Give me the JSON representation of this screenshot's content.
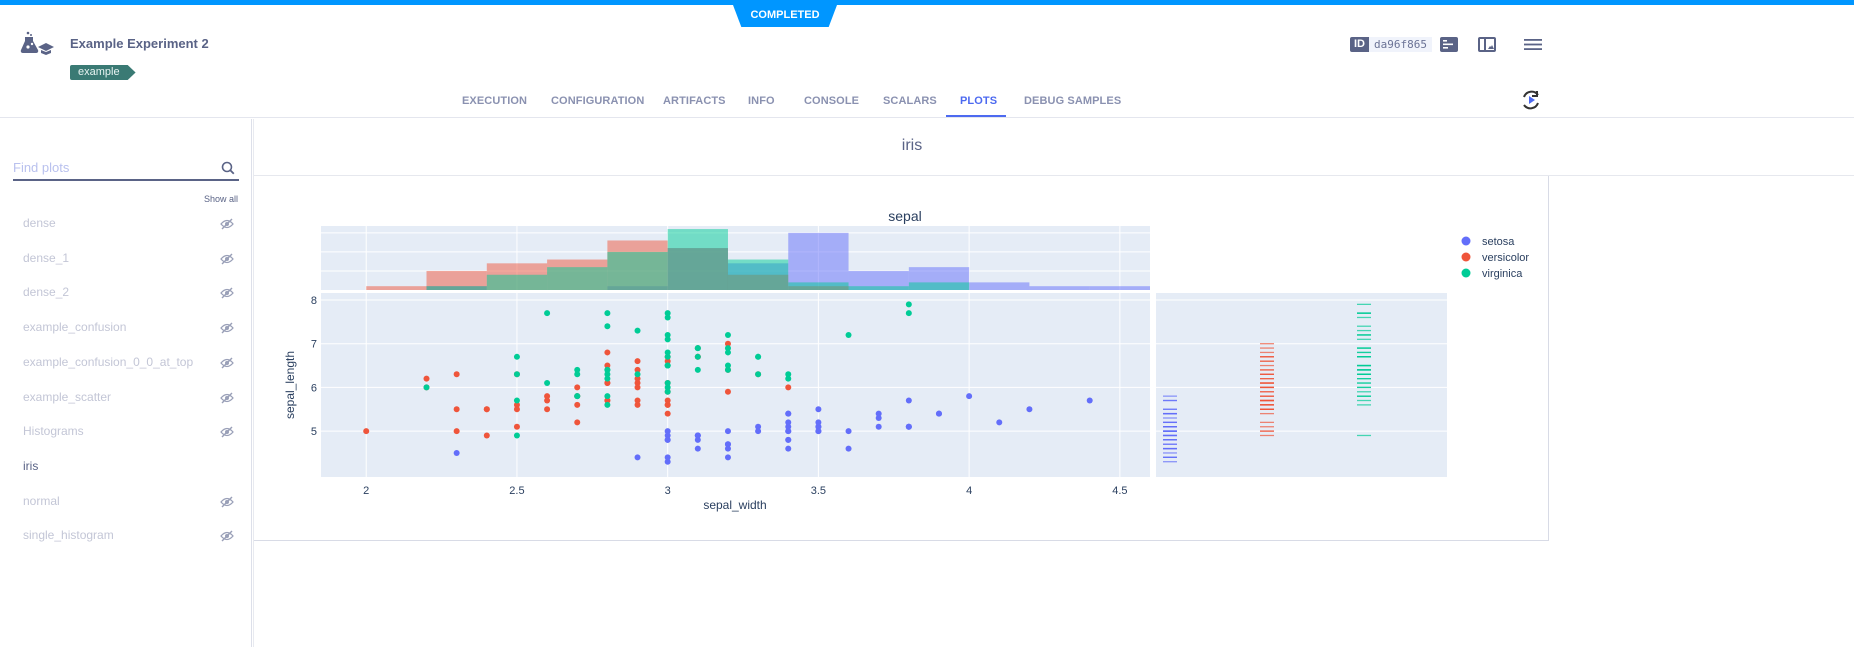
{
  "header": {
    "status": "COMPLETED",
    "title": "Example Experiment 2",
    "tag": "example",
    "id_label": "ID",
    "id_value": "da96f865"
  },
  "tabs": [
    {
      "label": "EXECUTION"
    },
    {
      "label": "CONFIGURATION"
    },
    {
      "label": "ARTIFACTS"
    },
    {
      "label": "INFO"
    },
    {
      "label": "CONSOLE"
    },
    {
      "label": "SCALARS"
    },
    {
      "label": "PLOTS",
      "active": true
    },
    {
      "label": "DEBUG SAMPLES"
    }
  ],
  "sidebar": {
    "search_placeholder": "Find plots",
    "show_all": "Show all",
    "items": [
      {
        "label": "dense",
        "hidden": true
      },
      {
        "label": "dense_1",
        "hidden": true
      },
      {
        "label": "dense_2",
        "hidden": true
      },
      {
        "label": "example_confusion",
        "hidden": true
      },
      {
        "label": "example_confusion_0_0_at_top",
        "hidden": true
      },
      {
        "label": "example_scatter",
        "hidden": true
      },
      {
        "label": "Histograms",
        "hidden": true
      },
      {
        "label": "iris",
        "hidden": false
      },
      {
        "label": "normal",
        "hidden": true
      },
      {
        "label": "single_histogram",
        "hidden": true
      }
    ]
  },
  "main": {
    "group_title": "iris"
  },
  "colors": {
    "accent": "#4d6af0",
    "status": "#0096ff",
    "tag": "#3a7a74",
    "plot_bg": "#e5ecf6"
  },
  "chart_data": {
    "type": "scatter",
    "title": "sepal",
    "xlabel": "sepal_width",
    "ylabel": "sepal_length",
    "xlim": [
      1.85,
      4.6
    ],
    "ylim": [
      3.95,
      8.16
    ],
    "x_ticks": [
      "2",
      "2.5",
      "3",
      "3.5",
      "4",
      "4.5"
    ],
    "y_ticks": [
      "5",
      "6",
      "7",
      "8"
    ],
    "grid": true,
    "legend": "top-right",
    "marginal_x": "histogram",
    "marginal_y": "rug",
    "hist_bin_size": 0.2,
    "hist_start": 2.0,
    "series": [
      {
        "name": "setosa",
        "color": "#636efa",
        "x": [
          3.5,
          3.0,
          3.2,
          3.1,
          3.6,
          3.9,
          3.4,
          3.4,
          2.9,
          3.1,
          3.7,
          3.4,
          3.0,
          3.0,
          4.0,
          4.4,
          3.9,
          3.5,
          3.8,
          3.8,
          3.4,
          3.7,
          3.6,
          3.3,
          3.4,
          3.0,
          3.4,
          3.5,
          3.4,
          3.2,
          3.1,
          3.4,
          4.1,
          4.2,
          3.1,
          3.2,
          3.5,
          3.1,
          3.0,
          3.4,
          3.5,
          2.3,
          3.2,
          3.5,
          3.8,
          3.0,
          3.8,
          3.2,
          3.7,
          3.3
        ],
        "y": [
          5.1,
          4.9,
          4.7,
          4.6,
          5.0,
          5.4,
          4.6,
          5.0,
          4.4,
          4.9,
          5.4,
          4.8,
          4.8,
          4.3,
          5.8,
          5.7,
          5.4,
          5.1,
          5.7,
          5.1,
          5.4,
          5.1,
          4.6,
          5.1,
          4.8,
          5.0,
          5.0,
          5.2,
          5.2,
          4.7,
          4.8,
          5.4,
          5.2,
          5.5,
          4.9,
          5.0,
          5.5,
          4.9,
          4.4,
          5.1,
          5.0,
          4.5,
          4.4,
          5.0,
          5.1,
          4.8,
          5.1,
          4.6,
          5.3,
          5.0
        ]
      },
      {
        "name": "versicolor",
        "color": "#ef553b",
        "x": [
          3.2,
          3.2,
          3.1,
          2.3,
          2.8,
          2.8,
          3.3,
          2.4,
          2.9,
          2.7,
          2.0,
          3.0,
          2.2,
          2.9,
          2.9,
          3.1,
          3.0,
          2.7,
          2.2,
          2.5,
          3.2,
          2.8,
          2.5,
          2.8,
          2.9,
          3.0,
          2.8,
          3.0,
          2.9,
          2.6,
          2.4,
          2.4,
          2.7,
          2.7,
          3.0,
          3.4,
          3.1,
          2.3,
          3.0,
          2.5,
          2.6,
          3.0,
          2.6,
          2.3,
          2.7,
          3.0,
          2.9,
          2.9,
          2.5,
          2.8
        ],
        "y": [
          7.0,
          6.4,
          6.9,
          5.5,
          6.5,
          5.7,
          6.3,
          4.9,
          6.6,
          5.2,
          5.0,
          5.9,
          6.0,
          6.1,
          5.6,
          6.7,
          5.6,
          5.8,
          6.2,
          5.6,
          5.9,
          6.1,
          6.3,
          6.1,
          6.4,
          6.6,
          6.8,
          6.7,
          6.0,
          5.7,
          5.5,
          5.5,
          5.8,
          6.0,
          5.4,
          6.0,
          6.7,
          6.3,
          5.6,
          5.5,
          5.5,
          6.1,
          5.8,
          5.0,
          5.6,
          5.7,
          5.7,
          6.2,
          5.1,
          5.7
        ]
      },
      {
        "name": "virginica",
        "color": "#00cc96",
        "x": [
          3.3,
          2.7,
          3.0,
          2.9,
          3.0,
          3.0,
          2.5,
          2.9,
          2.5,
          3.6,
          3.2,
          2.7,
          3.0,
          2.5,
          2.8,
          3.2,
          3.0,
          3.8,
          2.6,
          2.2,
          3.2,
          2.8,
          2.8,
          2.7,
          3.3,
          3.2,
          2.8,
          3.0,
          2.8,
          3.0,
          2.8,
          3.8,
          2.8,
          2.8,
          2.6,
          3.0,
          3.4,
          3.1,
          3.0,
          3.1,
          3.1,
          3.1,
          2.7,
          3.2,
          3.3,
          3.0,
          2.5,
          3.0,
          3.4,
          3.0
        ],
        "y": [
          6.3,
          5.8,
          7.1,
          6.3,
          6.5,
          7.6,
          4.9,
          7.3,
          6.7,
          7.2,
          6.5,
          6.4,
          6.8,
          5.7,
          5.8,
          6.4,
          6.5,
          7.7,
          7.7,
          6.0,
          6.9,
          5.6,
          7.7,
          6.3,
          6.7,
          7.2,
          6.2,
          6.1,
          6.4,
          7.2,
          7.4,
          7.9,
          6.4,
          6.3,
          6.1,
          7.7,
          6.3,
          6.4,
          6.0,
          6.9,
          6.7,
          6.9,
          5.8,
          6.8,
          6.7,
          6.7,
          6.3,
          6.5,
          6.2,
          5.9
        ]
      }
    ]
  }
}
